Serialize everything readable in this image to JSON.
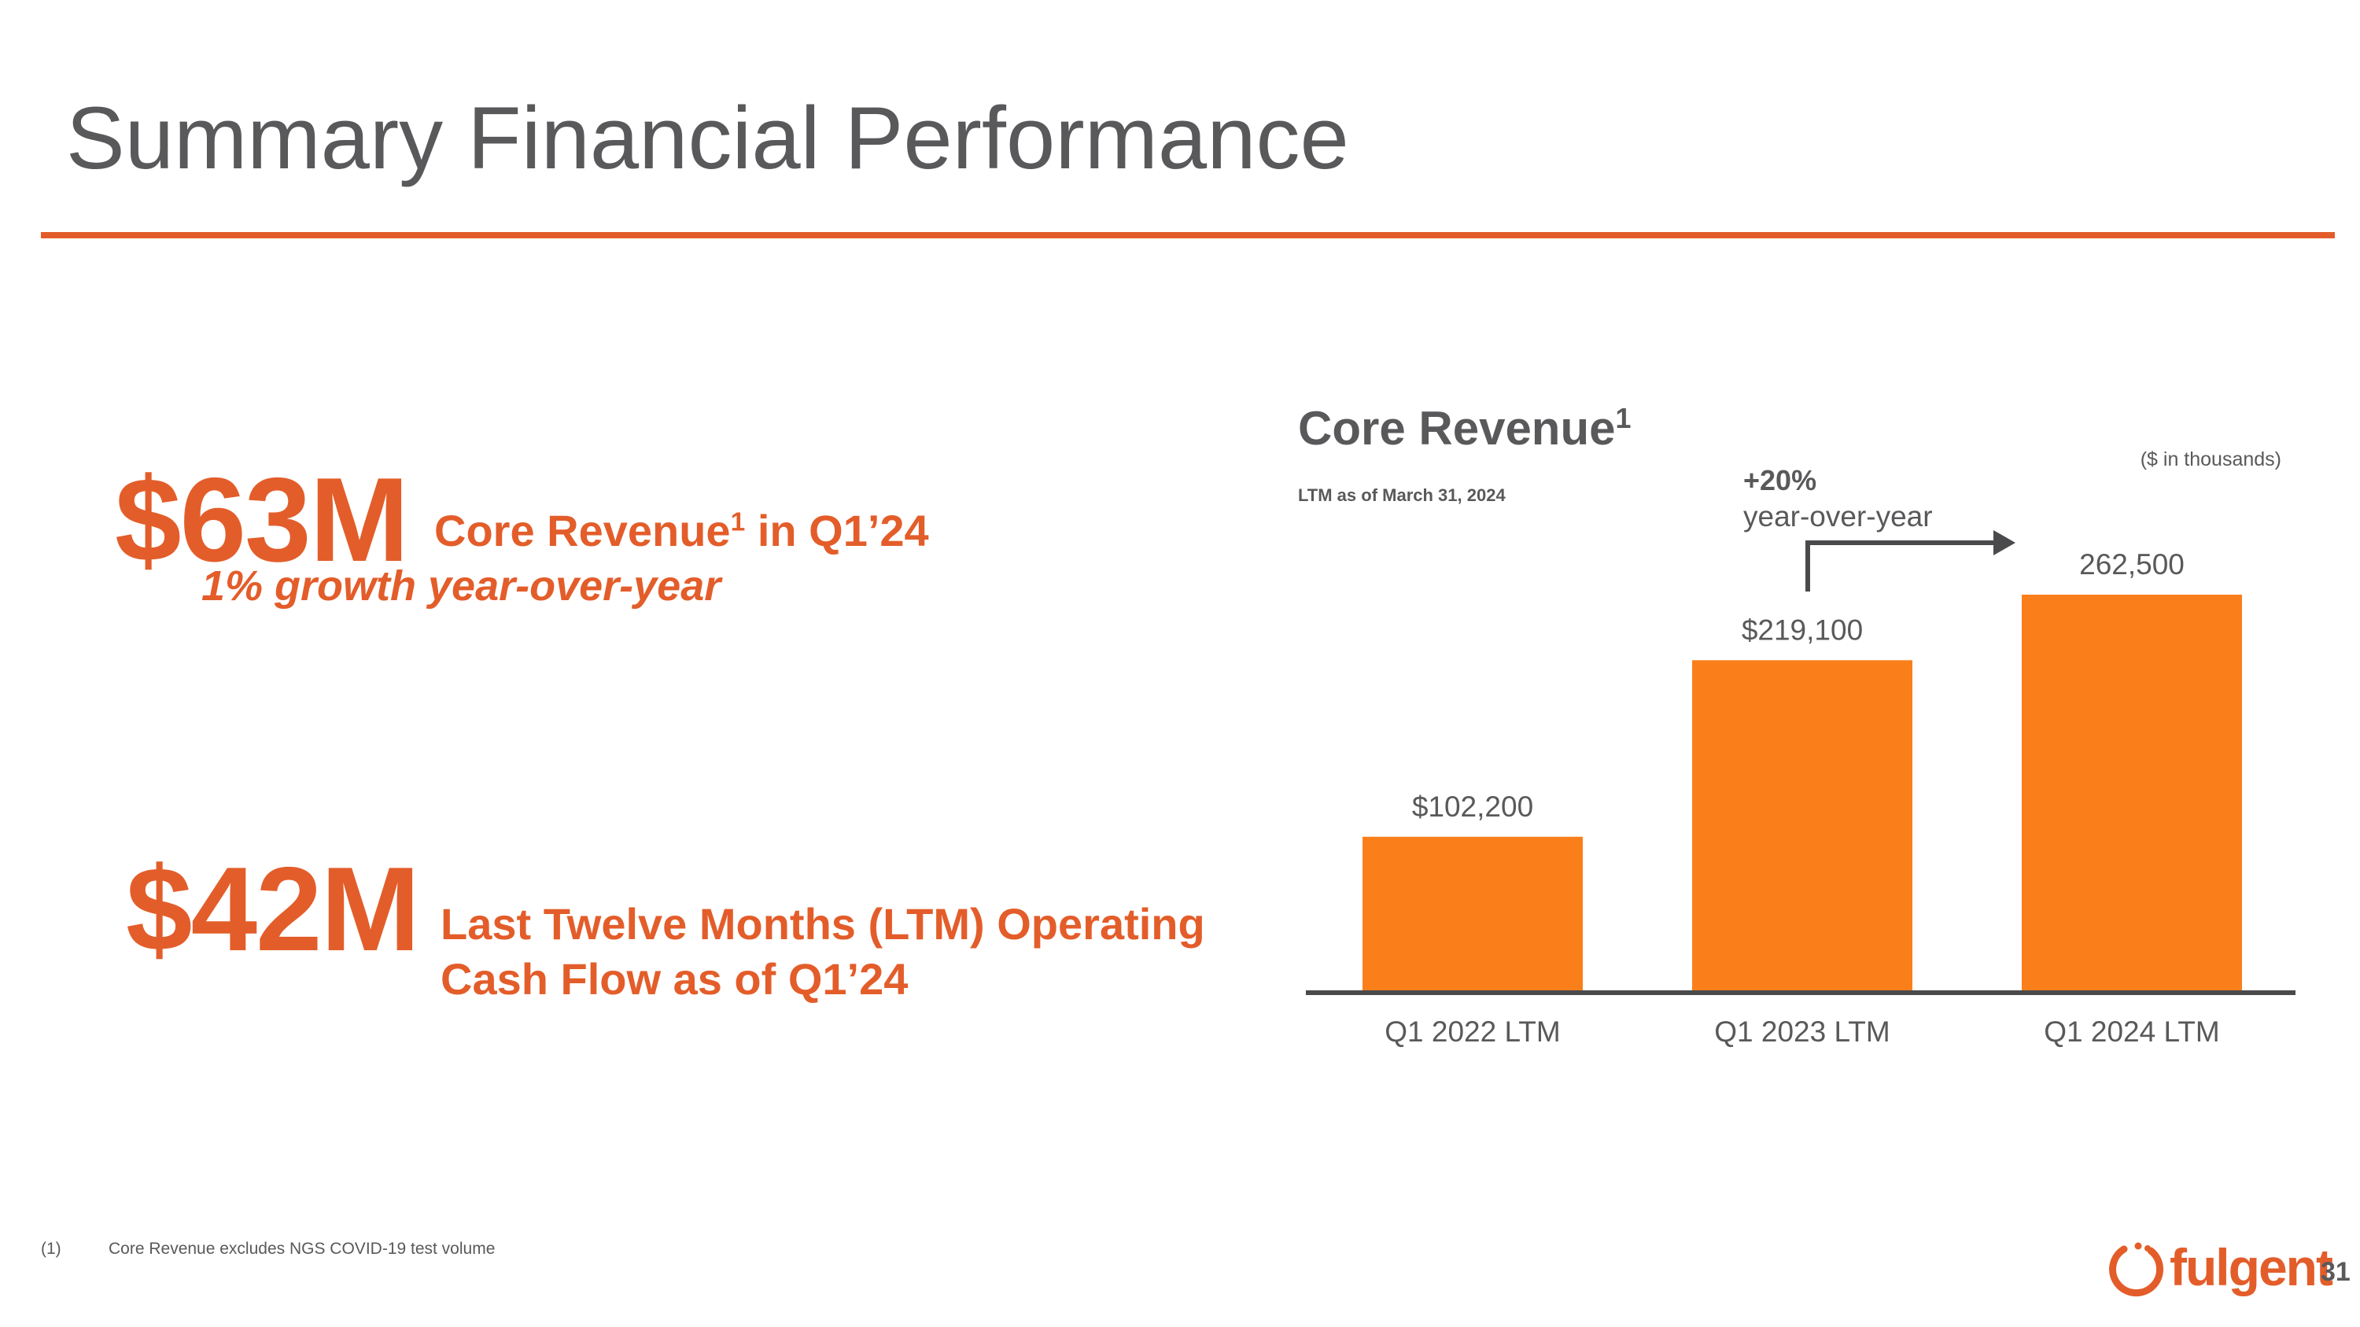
{
  "slide": {
    "title": "Summary Financial Performance",
    "page_number": "31",
    "accent_color": "#e35d2a",
    "text_color": "#59595b",
    "bar_color": "#fa7f1a"
  },
  "kpis": [
    {
      "value": "$63M",
      "label": "Core Revenue",
      "label_sup": "1",
      "label_suffix": " in Q1’24",
      "sub": "1% growth year-over-year"
    },
    {
      "value": "$42M",
      "label_line1": "Last Twelve Months (LTM) Operating",
      "label_line2": "Cash Flow as of Q1’24"
    }
  ],
  "chart_header": {
    "title": "Core Revenue",
    "title_sup": "1",
    "subtitle": "LTM as of March 31, 2024",
    "units_note": "($ in thousands)",
    "growth_pct": "+20%",
    "growth_text": "year-over-year"
  },
  "chart_data": {
    "type": "bar",
    "title": "Core Revenue",
    "subtitle": "LTM as of March 31, 2024",
    "categories": [
      "Q1 2022 LTM",
      "Q1 2023 LTM",
      "Q1 2024 LTM"
    ],
    "values": [
      102200,
      219100,
      262500
    ],
    "data_labels": [
      "$102,200",
      "$219,100",
      "262,500"
    ],
    "units": "$ in thousands",
    "ylim": [
      0,
      275000
    ],
    "grid": false,
    "legend": "none",
    "annotations": [
      {
        "text": "+20% year-over-year",
        "from": "Q1 2023 LTM",
        "to": "Q1 2024 LTM"
      }
    ]
  },
  "footnote": {
    "marker": "(1)",
    "text": "Core Revenue excludes NGS COVID-19 test volume"
  },
  "logo": {
    "text": "fulgent",
    "icon": "fulgent-ring-icon"
  }
}
